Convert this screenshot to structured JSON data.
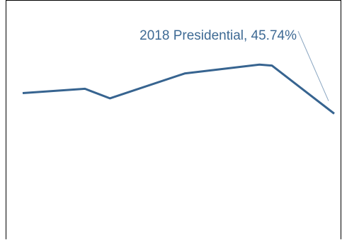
{
  "chart_data": {
    "type": "line",
    "series": [
      {
        "values": [
          {
            "x": 0.0,
            "y": 0.611
          },
          {
            "x": 0.2,
            "y": 0.629
          },
          {
            "x": 0.28,
            "y": 0.589
          },
          {
            "x": 0.52,
            "y": 0.693
          },
          {
            "x": 0.76,
            "y": 0.73
          },
          {
            "x": 0.8,
            "y": 0.726
          },
          {
            "x": 1.0,
            "y": 0.525
          }
        ]
      }
    ],
    "annotation": {
      "text": "2018 Presidential, 45.74%"
    },
    "xlim": [
      0,
      1
    ],
    "ylim": [
      0,
      1
    ],
    "grid": false,
    "line_color": "#376490",
    "annotation_color": "#3e6a94",
    "leader_color": "#8aa6c1"
  }
}
